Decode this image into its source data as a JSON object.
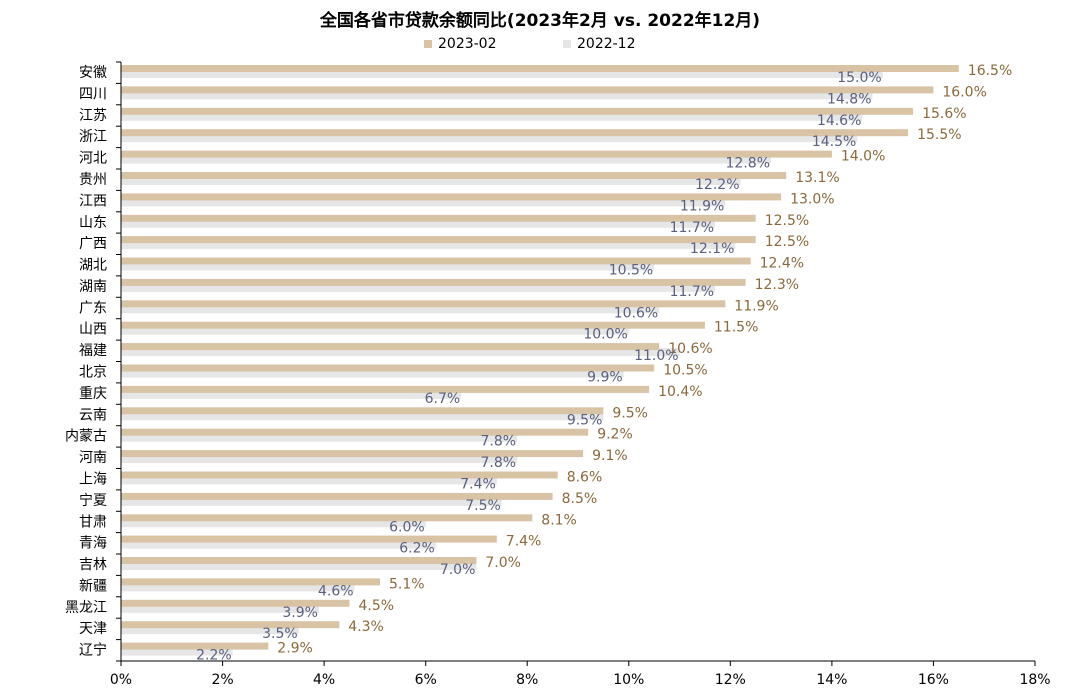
{
  "chart_data": {
    "type": "bar",
    "orientation": "horizontal",
    "title": "全国各省市贷款余额同比(2023年2月 vs. 2022年12月)",
    "categories": [
      "安徽",
      "四川",
      "江苏",
      "浙江",
      "河北",
      "贵州",
      "江西",
      "山东",
      "广西",
      "湖北",
      "湖南",
      "广东",
      "山西",
      "福建",
      "北京",
      "重庆",
      "云南",
      "内蒙古",
      "河南",
      "上海",
      "宁夏",
      "甘肃",
      "青海",
      "吉林",
      "新疆",
      "黑龙江",
      "天津",
      "辽宁"
    ],
    "series": [
      {
        "name": "2023-02",
        "color": "#d9c3a5",
        "label_color": "#8a6a3c",
        "values": [
          16.5,
          16.0,
          15.6,
          15.5,
          14.0,
          13.1,
          13.0,
          12.5,
          12.5,
          12.4,
          12.3,
          11.9,
          11.5,
          10.6,
          10.5,
          10.4,
          9.5,
          9.2,
          9.1,
          8.6,
          8.5,
          8.1,
          7.4,
          7.0,
          5.1,
          4.5,
          4.3,
          2.9
        ],
        "labels": [
          "16.5%",
          "16.0%",
          "15.6%",
          "15.5%",
          "14.0%",
          "13.1%",
          "13.0%",
          "12.5%",
          "12.5%",
          "12.4%",
          "12.3%",
          "11.9%",
          "11.5%",
          "10.6%",
          "10.5%",
          "10.4%",
          "9.5%",
          "9.2%",
          "9.1%",
          "8.6%",
          "8.5%",
          "8.1%",
          "7.4%",
          "7.0%",
          "5.1%",
          "4.5%",
          "4.3%",
          "2.9%"
        ]
      },
      {
        "name": "2022-12",
        "color": "#e6e6e6",
        "label_color": "#5a6080",
        "values": [
          15.0,
          14.8,
          14.6,
          14.5,
          12.8,
          12.2,
          11.9,
          11.7,
          12.1,
          10.5,
          11.7,
          10.6,
          10.0,
          11.0,
          9.9,
          6.7,
          9.5,
          7.8,
          7.8,
          7.4,
          7.5,
          6.0,
          6.2,
          7.0,
          4.6,
          3.9,
          3.5,
          2.2
        ],
        "labels": [
          "15.0%",
          "14.8%",
          "14.6%",
          "14.5%",
          "12.8%",
          "12.2%",
          "11.9%",
          "11.7%",
          "12.1%",
          "10.5%",
          "11.7%",
          "10.6%",
          "10.0%",
          "11.0%",
          "9.9%",
          "6.7%",
          "9.5%",
          "7.8%",
          "7.8%",
          "7.4%",
          "7.5%",
          "6.0%",
          "6.2%",
          "7.0%",
          "4.6%",
          "3.9%",
          "3.5%",
          "2.2%"
        ]
      }
    ],
    "xlim": [
      0,
      18
    ],
    "xticks": [
      0,
      2,
      4,
      6,
      8,
      10,
      12,
      14,
      16,
      18
    ],
    "xtick_labels": [
      "0%",
      "2%",
      "4%",
      "6%",
      "8%",
      "10%",
      "12%",
      "14%",
      "16%",
      "18%"
    ],
    "grid": false,
    "legend_position": "top-center"
  }
}
